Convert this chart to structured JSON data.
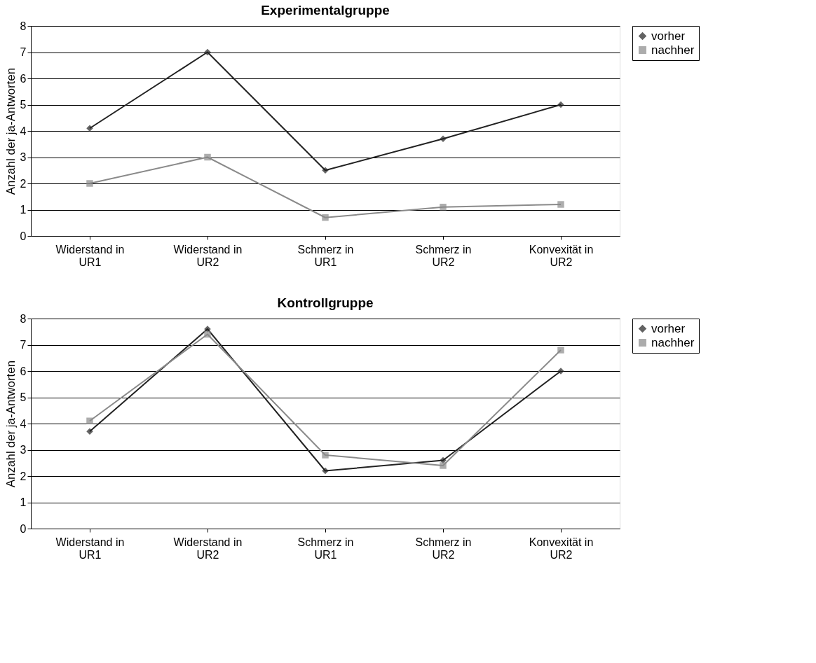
{
  "chart_data": [
    {
      "type": "line",
      "title": "Experimentalgruppe",
      "ylabel": "Anzahl der ja-Antworten",
      "categories": [
        "Widerstand in UR1",
        "Widerstand in UR2",
        "Schmerz in UR1",
        "Schmerz in UR2",
        "Konvexität in UR2"
      ],
      "ylim": [
        0,
        8
      ],
      "yticks": [
        0,
        1,
        2,
        3,
        4,
        5,
        6,
        7,
        8
      ],
      "grid": "y",
      "legend": "right",
      "series": [
        {
          "name": "vorher",
          "color": "#222222",
          "marker": "diamond",
          "values": [
            4.1,
            7,
            2.5,
            3.7,
            5
          ]
        },
        {
          "name": "nachher",
          "color": "#8a8a8a",
          "marker": "square",
          "values": [
            2,
            3,
            0.7,
            1.1,
            1.2
          ]
        }
      ]
    },
    {
      "type": "line",
      "title": "Kontrollgruppe",
      "ylabel": "Anzahl der ja-Antworten",
      "categories": [
        "Widerstand in UR1",
        "Widerstand in UR2",
        "Schmerz in UR1",
        "Schmerz in UR2",
        "Konvexität in UR2"
      ],
      "ylim": [
        0,
        8
      ],
      "yticks": [
        0,
        1,
        2,
        3,
        4,
        5,
        6,
        7,
        8
      ],
      "grid": "y",
      "legend": "right",
      "series": [
        {
          "name": "vorher",
          "color": "#222222",
          "marker": "diamond",
          "values": [
            3.7,
            7.6,
            2.2,
            2.6,
            6
          ]
        },
        {
          "name": "nachher",
          "color": "#8a8a8a",
          "marker": "square",
          "values": [
            4.1,
            7.4,
            2.8,
            2.4,
            6.8
          ]
        }
      ]
    }
  ]
}
